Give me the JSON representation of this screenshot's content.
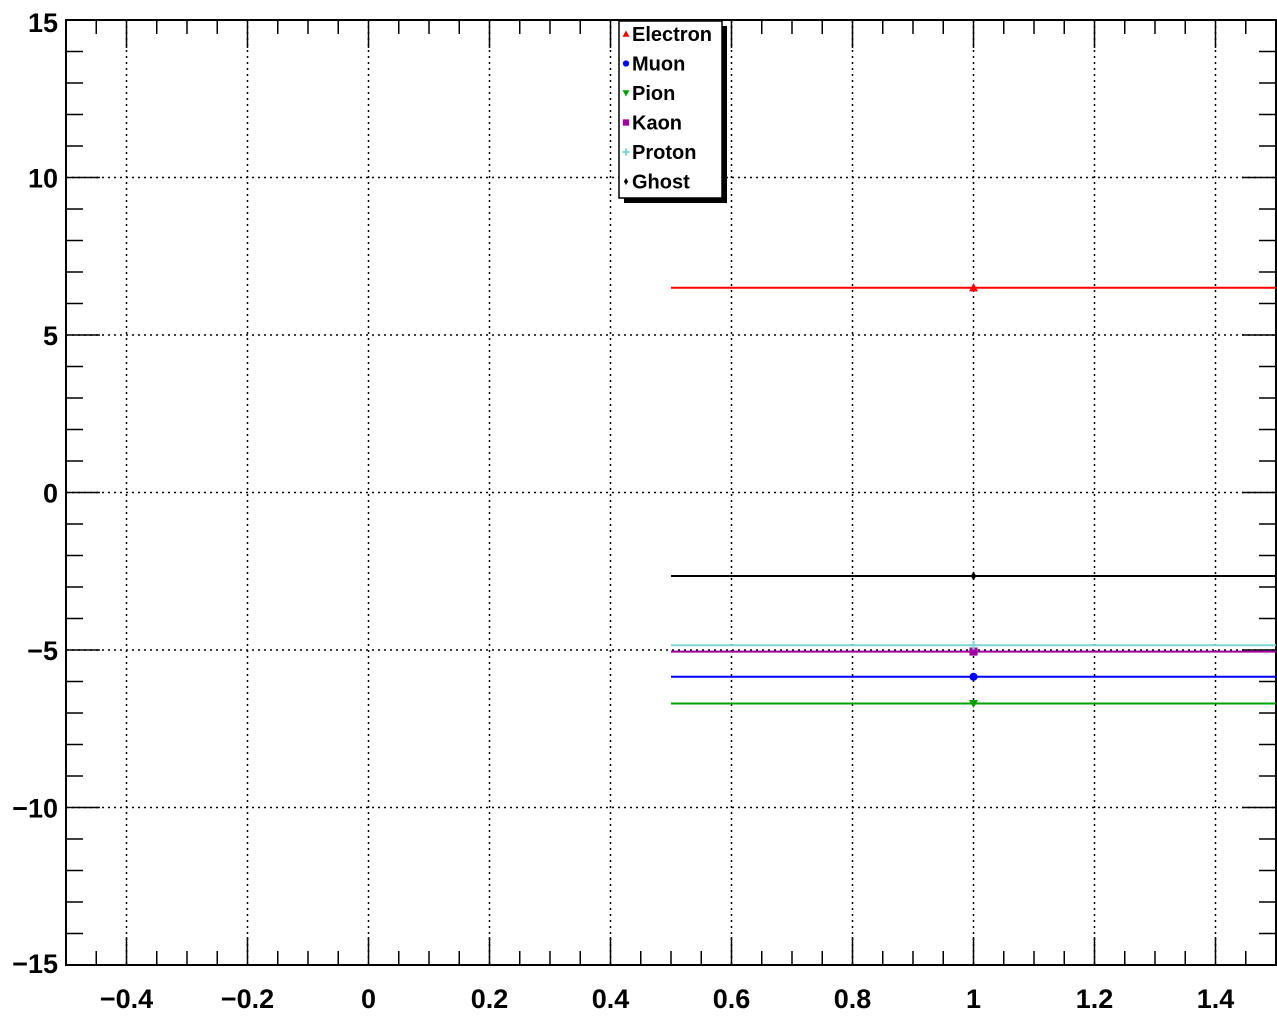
{
  "chart_data": {
    "type": "line",
    "title": "",
    "xlabel": "",
    "ylabel": "",
    "xlim": [
      -0.5,
      1.5
    ],
    "ylim": [
      -15,
      15
    ],
    "grid": true,
    "legend_position": "top-center",
    "x_ticks": [
      -0.4,
      -0.2,
      0,
      0.2,
      0.4,
      0.6,
      0.8,
      1,
      1.2,
      1.4
    ],
    "x_tick_labels": [
      "−0.4",
      "−0.2",
      "0",
      "0.2",
      "0.4",
      "0.6",
      "0.8",
      "1",
      "1.2",
      "1.4"
    ],
    "y_ticks": [
      -15,
      -10,
      -5,
      0,
      5,
      10,
      15
    ],
    "y_tick_labels": [
      "−15",
      "−10",
      "−5",
      "0",
      "5",
      "10",
      "15"
    ],
    "series": [
      {
        "name": "Electron",
        "color": "#ff0000",
        "marker": "triangle-up",
        "x": 1,
        "x_range": [
          0.5,
          1.5
        ],
        "y": 6.5
      },
      {
        "name": "Muon",
        "color": "#0000ff",
        "marker": "circle",
        "x": 1,
        "x_range": [
          0.5,
          1.5
        ],
        "y": -5.85
      },
      {
        "name": "Pion",
        "color": "#00a000",
        "marker": "triangle-down",
        "x": 1,
        "x_range": [
          0.5,
          1.5
        ],
        "y": -6.7
      },
      {
        "name": "Kaon",
        "color": "#a000a0",
        "marker": "square",
        "x": 1,
        "x_range": [
          0.5,
          1.5
        ],
        "y": -5.05
      },
      {
        "name": "Proton",
        "color": "#7fd4d4",
        "marker": "cross",
        "x": 1,
        "x_range": [
          0.5,
          1.5
        ],
        "y": -4.85
      },
      {
        "name": "Ghost",
        "color": "#000000",
        "marker": "diamond",
        "x": 1,
        "x_range": [
          0.5,
          1.5
        ],
        "y": -2.65
      }
    ]
  }
}
